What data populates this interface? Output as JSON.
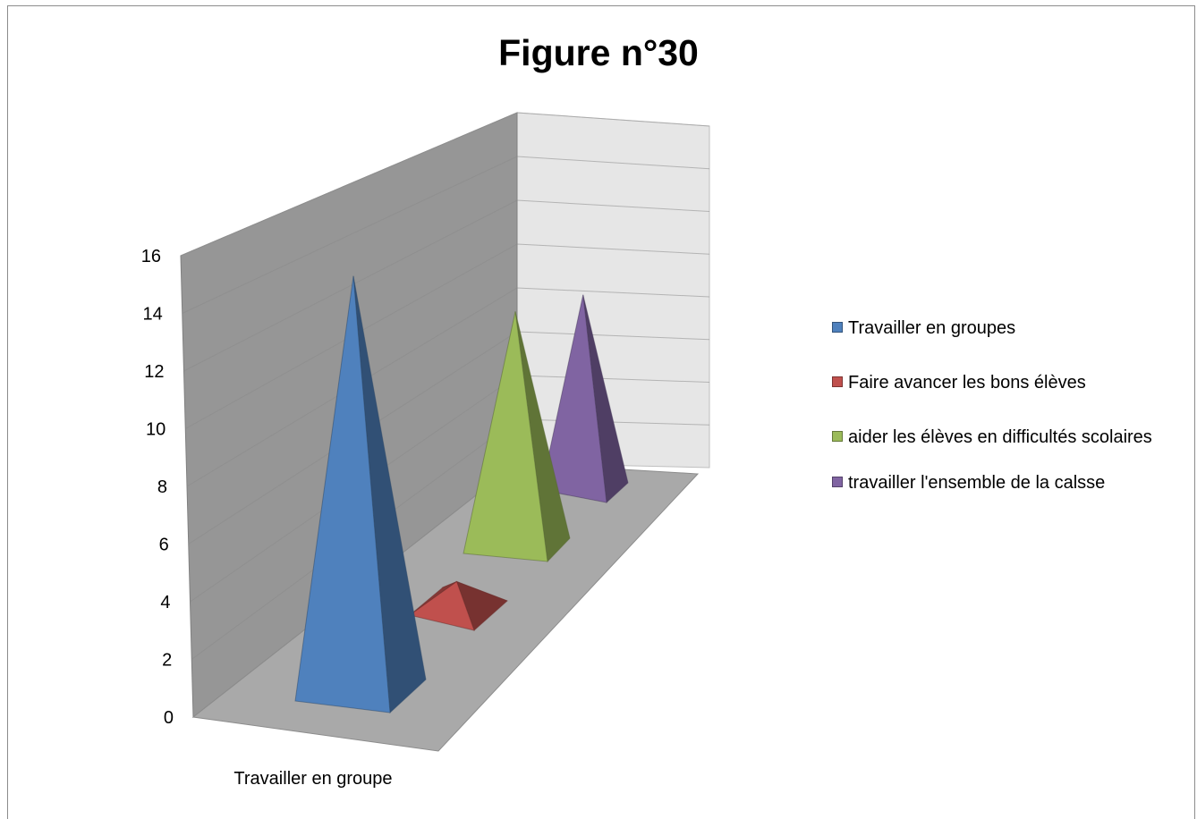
{
  "chart_data": {
    "type": "bar",
    "shape": "pyramid-3d",
    "title": "Figure n°30",
    "categories": [
      "Travailler en groupe"
    ],
    "series": [
      {
        "name": "Travailler en groupes",
        "values": [
          15
        ],
        "color": "#4f81bd"
      },
      {
        "name": "Faire avancer les bons élèves",
        "values": [
          1
        ],
        "color": "#c0504d"
      },
      {
        "name": "aider les élèves en difficultés scolaires",
        "values": [
          12
        ],
        "color": "#9bbb59"
      },
      {
        "name": "travailler l'ensemble de la calsse",
        "values": [
          11
        ],
        "color": "#8064a2"
      }
    ],
    "yticks": [
      "0",
      "2",
      "4",
      "6",
      "8",
      "10",
      "12",
      "14",
      "16"
    ],
    "ylim": [
      0,
      16
    ],
    "grid": true,
    "legend_position": "right"
  }
}
